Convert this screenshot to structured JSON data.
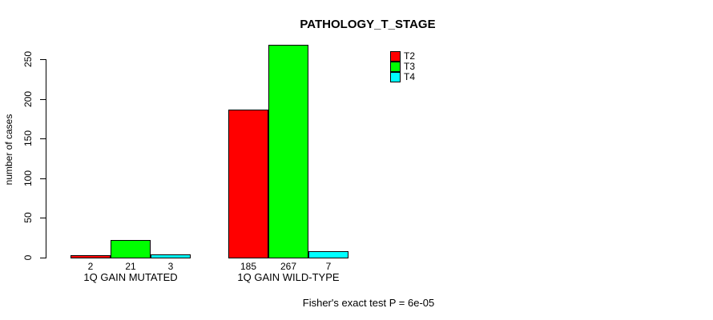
{
  "chart_data": {
    "type": "bar",
    "title": "PATHOLOGY_T_STAGE",
    "ylabel": "number of cases",
    "xlabel": "",
    "ylim": [
      0,
      250
    ],
    "yticks": [
      0,
      50,
      100,
      150,
      200,
      250
    ],
    "categories": [
      "1Q GAIN MUTATED",
      "1Q GAIN WILD-TYPE"
    ],
    "series": [
      {
        "name": "T2",
        "color": "#ff0000",
        "values": [
          2,
          185
        ]
      },
      {
        "name": "T3",
        "color": "#00ff00",
        "values": [
          21,
          267
        ]
      },
      {
        "name": "T4",
        "color": "#00ffff",
        "values": [
          3,
          7
        ]
      }
    ],
    "bar_value_labels_shown": true,
    "legend_position": "top-right",
    "grid": false,
    "caption": "Fisher's exact test P = 6e-05"
  }
}
